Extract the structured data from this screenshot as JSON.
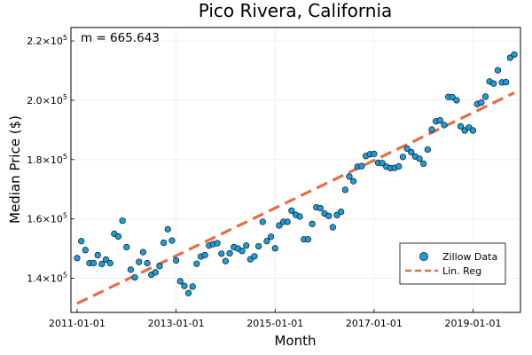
{
  "chart_data": {
    "type": "scatter",
    "title": "Pico Rivera, California",
    "xlabel": "Month",
    "ylabel": "Median Price ($)",
    "annotation": "m = 665.643",
    "x_start": "2011-01-01",
    "x_ticks": [
      {
        "label": "2011-01-01",
        "month": 0
      },
      {
        "label": "2013-01-01",
        "month": 24
      },
      {
        "label": "2015-01-01",
        "month": 48
      },
      {
        "label": "2017-01-01",
        "month": 72
      },
      {
        "label": "2019-01-01",
        "month": 96
      }
    ],
    "y_ticks": [
      {
        "mant": "1.4",
        "value": 140000
      },
      {
        "mant": "1.6",
        "value": 160000
      },
      {
        "mant": "1.8",
        "value": 180000
      },
      {
        "mant": "2.0",
        "value": 200000
      },
      {
        "mant": "2.2",
        "value": 220000
      }
    ],
    "y_tick_suffix": "×10",
    "y_tick_exp": "5",
    "xlim": [
      -1.5,
      107.5
    ],
    "ylim": [
      128500,
      224500
    ],
    "legend_position": "bottom-right",
    "series": [
      {
        "name": "Zillow Data",
        "kind": "scatter",
        "color": "#1f9bd6",
        "x": [
          0,
          1,
          2,
          3,
          4,
          5,
          6,
          7,
          8,
          9,
          10,
          11,
          12,
          13,
          14,
          15,
          16,
          17,
          18,
          19,
          20,
          21,
          22,
          23,
          24,
          25,
          26,
          27,
          28,
          29,
          30,
          31,
          32,
          33,
          34,
          35,
          36,
          37,
          38,
          39,
          40,
          41,
          42,
          43,
          44,
          45,
          46,
          47,
          48,
          49,
          50,
          51,
          52,
          53,
          54,
          55,
          56,
          57,
          58,
          59,
          60,
          61,
          62,
          63,
          64,
          65,
          66,
          67,
          68,
          69,
          70,
          71,
          72,
          73,
          74,
          75,
          76,
          77,
          78,
          79,
          80,
          81,
          82,
          83,
          84,
          85,
          86,
          87,
          88,
          89,
          90,
          91,
          92,
          93,
          94,
          95,
          96,
          97,
          98,
          99,
          100,
          101,
          102,
          103,
          104,
          105,
          106
        ],
        "y": [
          146800,
          152500,
          149500,
          145100,
          145100,
          147800,
          144800,
          146300,
          145100,
          155000,
          154100,
          159400,
          150500,
          142900,
          140300,
          145500,
          148800,
          145100,
          141200,
          142000,
          144100,
          152000,
          156500,
          152700,
          146000,
          139000,
          137400,
          135000,
          137200,
          144900,
          147300,
          147800,
          151000,
          151500,
          151800,
          148300,
          145800,
          148400,
          150500,
          150000,
          149200,
          151000,
          146400,
          147400,
          150800,
          159000,
          152500,
          154000,
          150100,
          157800,
          159000,
          159000,
          162800,
          161400,
          160800,
          153100,
          153100,
          158300,
          163900,
          163600,
          161800,
          161000,
          157200,
          161300,
          162400,
          169800,
          174300,
          172700,
          177600,
          177800,
          181200,
          181800,
          181900,
          178900,
          178800,
          177600,
          177100,
          177200,
          177700,
          180900,
          183700,
          182500,
          181000,
          180300,
          178600,
          183400,
          190100,
          192900,
          193200,
          191600,
          201100,
          201000,
          200000,
          191200,
          189800,
          190800,
          189800,
          198700,
          199200,
          201200,
          206300,
          205600,
          210100,
          206000,
          206100,
          214300,
          215400
        ]
      },
      {
        "name": "Lin. Reg",
        "kind": "line",
        "color": "#e26f46",
        "line_x": [
          0,
          106
        ],
        "line_y": [
          131500,
          202500
        ]
      }
    ]
  }
}
